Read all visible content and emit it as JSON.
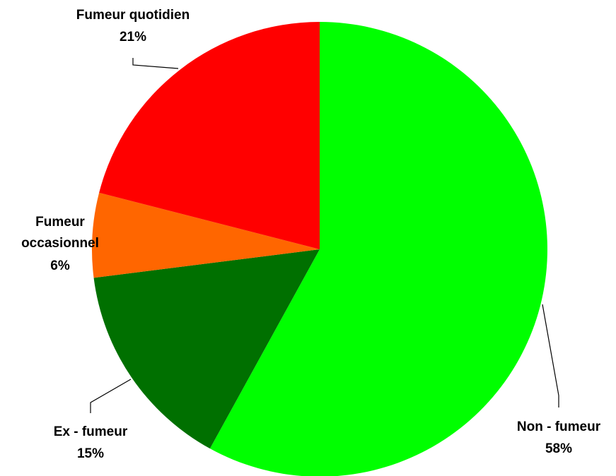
{
  "chart_data": {
    "type": "pie",
    "title": "",
    "start_angle_deg": 0,
    "direction": "clockwise",
    "legend": "none",
    "slices": [
      {
        "label_lines": [
          "Non - fumeur"
        ],
        "percent_label": "58%",
        "value": 58,
        "color": "#00FF00"
      },
      {
        "label_lines": [
          "Ex - fumeur"
        ],
        "percent_label": "15%",
        "value": 15,
        "color": "#007000"
      },
      {
        "label_lines": [
          "Fumeur",
          "occasionnel"
        ],
        "percent_label": "6%",
        "value": 6,
        "color": "#FF6600"
      },
      {
        "label_lines": [
          "Fumeur quotidien"
        ],
        "percent_label": "21%",
        "value": 21,
        "color": "#FF0000"
      }
    ]
  }
}
